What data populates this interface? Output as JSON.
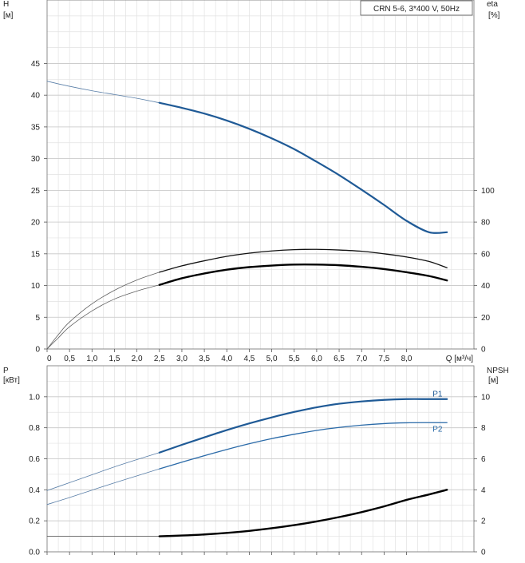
{
  "chart_data": [
    {
      "type": "line",
      "legend": "CRN 5-6, 3*400 V, 50Hz",
      "legend_position": "top-right",
      "grid": true,
      "xlabel": "Q [м³/ч]",
      "xlim": [
        0,
        9.5
      ],
      "x_ticks": [
        0,
        0.5,
        1.0,
        1.5,
        2.0,
        2.5,
        3.0,
        3.5,
        4.0,
        4.5,
        5.0,
        5.5,
        6.0,
        6.5,
        7.0,
        7.5,
        8.0
      ],
      "x_tick_labels": [
        "0",
        "0,5",
        "1,0",
        "1,5",
        "2,0",
        "2,5",
        "3,0",
        "3,5",
        "4,0",
        "4,5",
        "5,0",
        "5,5",
        "6,0",
        "6,5",
        "7,0",
        "7,5",
        "8,0"
      ],
      "y_axis_left": {
        "label_top": "H",
        "label_unit": "[м]",
        "range": [
          0,
          55
        ],
        "ticks": [
          0,
          5,
          10,
          15,
          20,
          25,
          30,
          35,
          40,
          45
        ],
        "tick_labels": [
          "0",
          "5",
          "10",
          "15",
          "20",
          "25",
          "30",
          "35",
          "40",
          "45"
        ]
      },
      "y_axis_right": {
        "label_top": "eta",
        "label_unit": "[%]",
        "range": [
          0,
          220
        ],
        "ticks": [
          0,
          20,
          40,
          60,
          80,
          100
        ],
        "tick_labels": [
          "0",
          "20",
          "40",
          "60",
          "80",
          "100"
        ]
      },
      "series": [
        {
          "key": "H_thin",
          "axis": "left",
          "color": "#5a7fa8",
          "width": 0.8,
          "x": [
            0,
            0.5,
            1.0,
            1.5,
            2.0,
            2.5
          ],
          "y": [
            42.2,
            41.4,
            40.7,
            40.1,
            39.5,
            38.8
          ]
        },
        {
          "key": "H",
          "axis": "left",
          "color": "#1f5a96",
          "width": 2.2,
          "x": [
            2.5,
            3.0,
            3.5,
            4.0,
            4.5,
            5.0,
            5.5,
            6.0,
            6.5,
            7.0,
            7.5,
            8.0,
            8.5,
            8.9
          ],
          "y": [
            38.8,
            38.0,
            37.1,
            36.0,
            34.7,
            33.2,
            31.5,
            29.5,
            27.4,
            25.1,
            22.7,
            20.2,
            18.4,
            18.4
          ]
        },
        {
          "key": "eta1_thin",
          "axis": "right",
          "color": "#606060",
          "width": 0.8,
          "x": [
            0,
            0.25,
            0.5,
            1.0,
            1.5,
            2.0,
            2.5
          ],
          "y": [
            0,
            9,
            17,
            28.5,
            37,
            43.5,
            48.4
          ]
        },
        {
          "key": "eta1",
          "axis": "right",
          "color": "#111111",
          "width": 1.3,
          "x": [
            2.5,
            3.0,
            3.5,
            4.0,
            4.5,
            5.0,
            5.5,
            6.0,
            6.5,
            7.0,
            7.5,
            8.0,
            8.5,
            8.9
          ],
          "y": [
            48.4,
            52.4,
            55.6,
            58.4,
            60.4,
            61.8,
            62.6,
            62.8,
            62.4,
            61.6,
            60.0,
            58.0,
            55.2,
            51.2
          ]
        },
        {
          "key": "eta2_thin",
          "axis": "right",
          "color": "#606060",
          "width": 0.8,
          "x": [
            0,
            0.25,
            0.5,
            1.0,
            1.5,
            2.0,
            2.5
          ],
          "y": [
            0,
            7,
            14,
            24,
            31.5,
            36.5,
            40.4
          ]
        },
        {
          "key": "eta2",
          "axis": "right",
          "color": "#000000",
          "width": 2.4,
          "x": [
            2.5,
            3.0,
            3.5,
            4.0,
            4.5,
            5.0,
            5.5,
            6.0,
            6.5,
            7.0,
            7.5,
            8.0,
            8.5,
            8.9
          ],
          "y": [
            40.4,
            44.6,
            47.6,
            50.0,
            51.6,
            52.6,
            53.2,
            53.2,
            52.8,
            51.8,
            50.4,
            48.4,
            46.0,
            43.2
          ]
        }
      ]
    },
    {
      "type": "line",
      "grid": true,
      "xlim": [
        0,
        9.5
      ],
      "x_ticks": [
        0,
        0.5,
        1.0,
        1.5,
        2.0,
        2.5,
        3.0,
        3.5,
        4.0,
        4.5,
        5.0,
        5.5,
        6.0,
        6.5,
        7.0,
        7.5,
        8.0
      ],
      "y_axis_left": {
        "label_top": "P",
        "label_unit": "[кВт]",
        "range": [
          0,
          1.2
        ],
        "ticks": [
          0,
          0.2,
          0.4,
          0.6,
          0.8,
          1.0
        ],
        "tick_labels": [
          "0.0",
          "0.2",
          "0.4",
          "0.6",
          "0.8",
          "1.0"
        ]
      },
      "y_axis_right": {
        "label_top": "NPSH",
        "label_unit": "[м]",
        "range": [
          0,
          12
        ],
        "ticks": [
          0,
          2,
          4,
          6,
          8,
          10
        ],
        "tick_labels": [
          "0",
          "2",
          "4",
          "6",
          "8",
          "10"
        ]
      },
      "series": [
        {
          "key": "P1_thin",
          "axis": "left",
          "color": "#5a7fa8",
          "width": 0.8,
          "x": [
            0,
            0.5,
            1.0,
            1.5,
            2.0,
            2.5
          ],
          "y": [
            0.395,
            0.446,
            0.497,
            0.548,
            0.595,
            0.64
          ]
        },
        {
          "key": "P1",
          "name": "P1",
          "axis": "left",
          "color": "#1f5a96",
          "width": 2.2,
          "x": [
            2.5,
            3.0,
            3.5,
            4.0,
            4.5,
            5.0,
            5.5,
            6.0,
            6.5,
            7.0,
            7.5,
            8.0,
            8.5,
            8.9
          ],
          "y": [
            0.64,
            0.69,
            0.738,
            0.785,
            0.828,
            0.867,
            0.902,
            0.932,
            0.955,
            0.97,
            0.98,
            0.985,
            0.985,
            0.985
          ]
        },
        {
          "key": "P2_thin",
          "axis": "left",
          "color": "#5a7fa8",
          "width": 0.8,
          "x": [
            0,
            0.5,
            1.0,
            1.5,
            2.0,
            2.5
          ],
          "y": [
            0.305,
            0.35,
            0.398,
            0.445,
            0.49,
            0.535
          ]
        },
        {
          "key": "P2",
          "name": "P2",
          "axis": "left",
          "color": "#2a6aa8",
          "width": 1.3,
          "x": [
            2.5,
            3.0,
            3.5,
            4.0,
            4.5,
            5.0,
            5.5,
            6.0,
            6.5,
            7.0,
            7.5,
            8.0,
            8.5,
            8.9
          ],
          "y": [
            0.535,
            0.578,
            0.62,
            0.66,
            0.697,
            0.73,
            0.758,
            0.783,
            0.802,
            0.817,
            0.827,
            0.832,
            0.833,
            0.833
          ]
        },
        {
          "key": "NPSH_thin",
          "axis": "right",
          "color": "#606060",
          "width": 0.8,
          "x": [
            0,
            0.5,
            1.0,
            1.5,
            2.0,
            2.5
          ],
          "y": [
            1.0,
            1.0,
            1.0,
            1.0,
            1.0,
            1.0
          ]
        },
        {
          "key": "NPSH",
          "axis": "right",
          "color": "#000000",
          "width": 2.4,
          "x": [
            2.5,
            3.0,
            3.5,
            4.0,
            4.5,
            5.0,
            5.5,
            6.0,
            6.5,
            7.0,
            7.5,
            8.0,
            8.5,
            8.9
          ],
          "y": [
            1.0,
            1.05,
            1.12,
            1.22,
            1.35,
            1.52,
            1.72,
            1.96,
            2.24,
            2.56,
            2.93,
            3.35,
            3.7,
            4.0
          ]
        }
      ]
    }
  ]
}
